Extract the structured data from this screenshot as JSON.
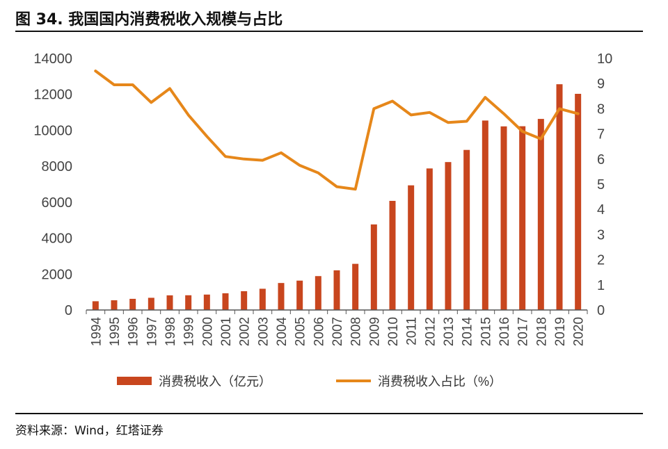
{
  "figure": {
    "title": "图 34. 我国国内消费税收入规模与占比",
    "source": "资料来源：Wind，红塔证券"
  },
  "colors": {
    "bar": "#C8461E",
    "line": "#E6871A",
    "axis": "#555555",
    "text": "#444444"
  },
  "chart_data": {
    "type": "bar",
    "categories": [
      "1994",
      "1995",
      "1996",
      "1997",
      "1998",
      "1999",
      "2000",
      "2001",
      "2002",
      "2003",
      "2004",
      "2005",
      "2006",
      "2007",
      "2008",
      "2009",
      "2010",
      "2011",
      "2012",
      "2013",
      "2014",
      "2015",
      "2016",
      "2017",
      "2018",
      "2019",
      "2020"
    ],
    "series": [
      {
        "name": "消费税收入（亿元）",
        "type": "bar",
        "axis": "left",
        "values": [
          487,
          541,
          621,
          679,
          815,
          820,
          858,
          930,
          1046,
          1182,
          1502,
          1634,
          1886,
          2207,
          2568,
          4761,
          6072,
          6936,
          7876,
          8231,
          8907,
          10542,
          10217,
          10225,
          10632,
          12562,
          12028
        ]
      },
      {
        "name": "消费税收入占比（%）",
        "type": "line",
        "axis": "right",
        "values": [
          9.5,
          8.95,
          8.95,
          8.25,
          8.8,
          7.75,
          6.9,
          6.1,
          6.0,
          5.95,
          6.25,
          5.75,
          5.45,
          4.9,
          4.8,
          8.0,
          8.3,
          7.75,
          7.85,
          7.45,
          7.5,
          8.45,
          7.8,
          7.1,
          6.8,
          8.0,
          7.8
        ]
      }
    ],
    "y_left": {
      "min": 0,
      "max": 14000,
      "step": 2000,
      "ticks": [
        "0",
        "2000",
        "4000",
        "6000",
        "8000",
        "10000",
        "12000",
        "14000"
      ]
    },
    "y_right": {
      "min": 0,
      "max": 10,
      "step": 1,
      "ticks": [
        "0",
        "1",
        "2",
        "3",
        "4",
        "5",
        "6",
        "7",
        "8",
        "9",
        "10"
      ]
    },
    "legend_position": "bottom",
    "grid": false
  }
}
